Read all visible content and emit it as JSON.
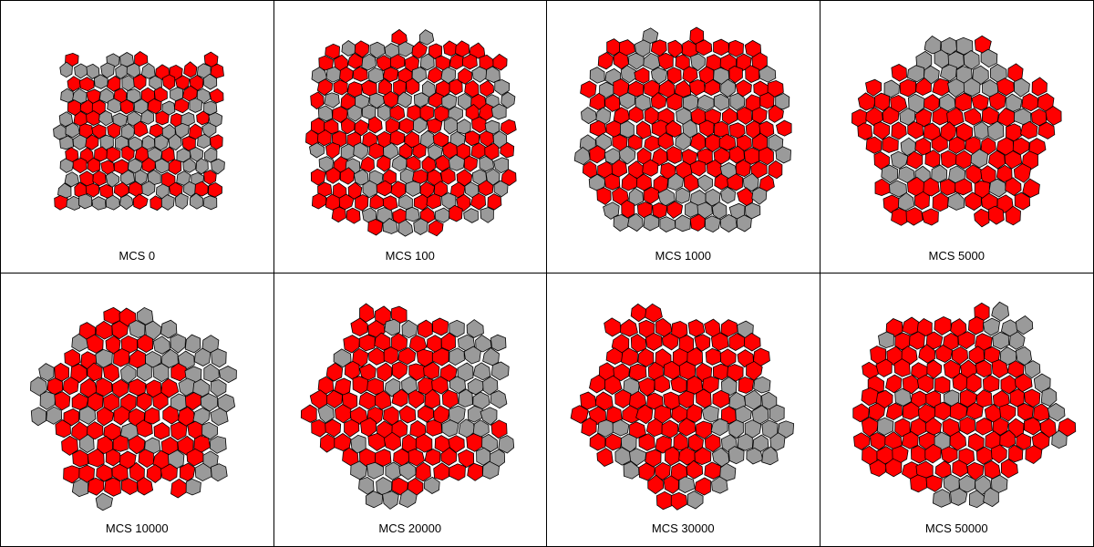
{
  "colors": {
    "red_cell": "#ff0000",
    "grey_cell": "#9a9a9a",
    "cell_outline": "#000000",
    "background": "#ffffff"
  },
  "panels": [
    {
      "label": "MCS 0",
      "shape": "square",
      "red_fraction": 0.5,
      "clustering": 0.0
    },
    {
      "label": "MCS 100",
      "shape": "rounded-square",
      "red_fraction": 0.5,
      "clustering": 0.25
    },
    {
      "label": "MCS 1000",
      "shape": "rounded",
      "red_fraction": 0.5,
      "clustering": 0.45
    },
    {
      "label": "MCS 5000",
      "shape": "blob",
      "red_fraction": 0.5,
      "clustering": 0.6
    },
    {
      "label": "MCS 10000",
      "shape": "blob",
      "red_fraction": 0.5,
      "clustering": 0.7
    },
    {
      "label": "MCS 20000",
      "shape": "blob",
      "red_fraction": 0.5,
      "clustering": 0.78
    },
    {
      "label": "MCS 30000",
      "shape": "blob",
      "red_fraction": 0.5,
      "clustering": 0.85
    },
    {
      "label": "MCS 50000",
      "shape": "blob",
      "red_fraction": 0.5,
      "clustering": 0.9
    }
  ]
}
